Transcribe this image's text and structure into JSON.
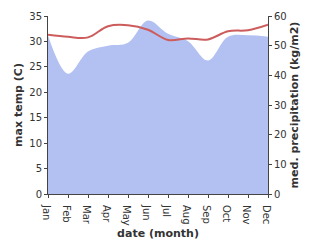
{
  "chart_data": {
    "type": "line",
    "x_label": "date (month)",
    "y_label": "max temp (C)",
    "y2_label": "med. precipitation (kg/m2)",
    "categories": [
      "Jan",
      "Feb",
      "Mar",
      "Apr",
      "May",
      "Jun",
      "Jul",
      "Aug",
      "Sep",
      "Oct",
      "Nov",
      "Dec"
    ],
    "series": [
      {
        "name": "med. precipitation",
        "type": "area",
        "axis": "y2",
        "color": "#b3c0f2",
        "values": [
          53.4,
          40.5,
          48,
          50,
          51,
          58.5,
          54,
          51.5,
          45,
          53,
          53.5,
          53
        ]
      },
      {
        "name": "max temp",
        "type": "line",
        "color": "#cd5c5c",
        "values": [
          31.3,
          30.9,
          30.8,
          33.0,
          33.2,
          32.3,
          30.3,
          30.6,
          30.4,
          32.0,
          32.2,
          33.3
        ]
      }
    ],
    "ylim": [
      0,
      35
    ],
    "yticks": [
      0,
      5,
      10,
      15,
      20,
      25,
      30,
      35
    ],
    "y2lim": [
      0,
      60
    ],
    "y2ticks": [
      0,
      10,
      20,
      30,
      40,
      50,
      60
    ],
    "grid": false
  }
}
